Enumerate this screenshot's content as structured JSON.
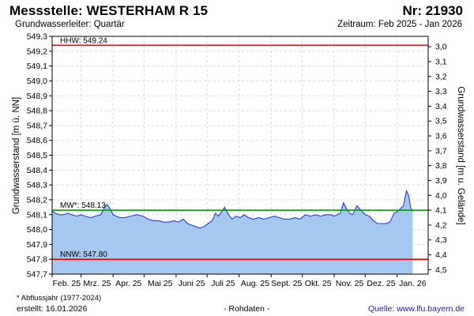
{
  "header": {
    "title": "Messstelle: WESTERHAM R 15",
    "station_number": "Nr: 21930",
    "subtitle": "Grundwasserleiter: Quartär",
    "period": "Zeitraum: Feb 2025 - Jan 2026"
  },
  "footer": {
    "footnote": "* Abflussjahr (1977-2024)",
    "created": "erstellt:  16.01.2026",
    "raw_data": "- Rohdaten -",
    "source": "Quelle:  www.lfu.bayern.de"
  },
  "chart_data": {
    "type": "area",
    "ylabel": "Grundwasserstand [m ü. NN]",
    "y2label": "Grundwasserstand [m u. Gelände]",
    "ylim": [
      547.7,
      549.3
    ],
    "y_ticks": [
      "547,7",
      "547,8",
      "547,9",
      "548,0",
      "548,1",
      "548,2",
      "548,3",
      "548,4",
      "548,5",
      "548,6",
      "548,7",
      "548,8",
      "548,9",
      "549,0",
      "549,1",
      "549,2",
      "549,3"
    ],
    "y2_ticks": [
      "3,0",
      "3,1",
      "3,2",
      "3,3",
      "3,4",
      "3,5",
      "3,6",
      "3,7",
      "3,8",
      "3,9",
      "4,0",
      "4,1",
      "4,2",
      "4,3",
      "4,4",
      "4,5"
    ],
    "y2_at_level_3_0": 549.23,
    "x_range": [
      "2025-02-01",
      "2026-01-31"
    ],
    "x_ticks": [
      "Feb. 25",
      "Mrz. 25",
      "Apr. 25",
      "Mai 25",
      "Juni 25",
      "Juli 25",
      "Aug. 25",
      "Sept. 25",
      "Okt. 25",
      "Nov. 25",
      "Dez. 25",
      "Jan. 26"
    ],
    "grid": true,
    "reference_lines": [
      {
        "label": "HHW: 549.24",
        "value": 549.24,
        "color": "#ff0000"
      },
      {
        "label": "MW*: 548.13",
        "value": 548.13,
        "color": "#00a000"
      },
      {
        "label": "NNW: 547.80",
        "value": 547.8,
        "color": "#ff0000"
      }
    ],
    "line_color": "#1f3fd0",
    "fill_color": "#a6c8f0",
    "series": [
      {
        "x": [
          "2025-02-01",
          "2025-02-04",
          "2025-02-08",
          "2025-02-12",
          "2025-02-16",
          "2025-02-20",
          "2025-02-25",
          "2025-03-01",
          "2025-03-05",
          "2025-03-10",
          "2025-03-15",
          "2025-03-20",
          "2025-03-23",
          "2025-03-26",
          "2025-03-29",
          "2025-04-01",
          "2025-04-04",
          "2025-04-08",
          "2025-04-12",
          "2025-04-18",
          "2025-04-24",
          "2025-04-30",
          "2025-05-05",
          "2025-05-10",
          "2025-05-15",
          "2025-05-20",
          "2025-05-25",
          "2025-05-30",
          "2025-06-03",
          "2025-06-08",
          "2025-06-12",
          "2025-06-16",
          "2025-06-20",
          "2025-06-24",
          "2025-06-28",
          "2025-07-02",
          "2025-07-06",
          "2025-07-09",
          "2025-07-12",
          "2025-07-15",
          "2025-07-18",
          "2025-07-21",
          "2025-07-25",
          "2025-07-29",
          "2025-08-02",
          "2025-08-06",
          "2025-08-10",
          "2025-08-15",
          "2025-08-20",
          "2025-08-25",
          "2025-08-30",
          "2025-09-04",
          "2025-09-09",
          "2025-09-14",
          "2025-09-19",
          "2025-09-24",
          "2025-09-29",
          "2025-10-04",
          "2025-10-09",
          "2025-10-14",
          "2025-10-19",
          "2025-10-24",
          "2025-10-29",
          "2025-11-01",
          "2025-11-04",
          "2025-11-07",
          "2025-11-10",
          "2025-11-13",
          "2025-11-16",
          "2025-11-19",
          "2025-11-23",
          "2025-11-27",
          "2025-12-01",
          "2025-12-05",
          "2025-12-09",
          "2025-12-13",
          "2025-12-17",
          "2025-12-21",
          "2025-12-25",
          "2025-12-29",
          "2026-01-01",
          "2026-01-04",
          "2026-01-07",
          "2026-01-10",
          "2026-01-12",
          "2026-01-14",
          "2026-01-15",
          "2026-01-16"
        ],
        "y": [
          548.13,
          548.11,
          548.1,
          548.1,
          548.11,
          548.1,
          548.09,
          548.1,
          548.09,
          548.08,
          548.09,
          548.1,
          548.14,
          548.17,
          548.14,
          548.1,
          548.09,
          548.08,
          548.08,
          548.09,
          548.1,
          548.09,
          548.07,
          548.06,
          548.06,
          548.05,
          548.05,
          548.06,
          548.05,
          548.07,
          548.04,
          548.03,
          548.02,
          548.01,
          548.02,
          548.04,
          548.06,
          548.11,
          548.09,
          548.12,
          548.15,
          548.11,
          548.07,
          548.09,
          548.08,
          548.1,
          548.08,
          548.07,
          548.08,
          548.07,
          548.08,
          548.09,
          548.08,
          548.07,
          548.07,
          548.08,
          548.07,
          548.1,
          548.09,
          548.1,
          548.09,
          548.1,
          548.1,
          548.09,
          548.1,
          548.11,
          548.18,
          548.14,
          548.11,
          548.1,
          548.16,
          548.13,
          548.1,
          548.09,
          548.06,
          548.04,
          548.04,
          548.04,
          548.05,
          548.11,
          548.12,
          548.14,
          548.16,
          548.26,
          548.23,
          548.15,
          548.13,
          548.12
        ]
      }
    ]
  }
}
